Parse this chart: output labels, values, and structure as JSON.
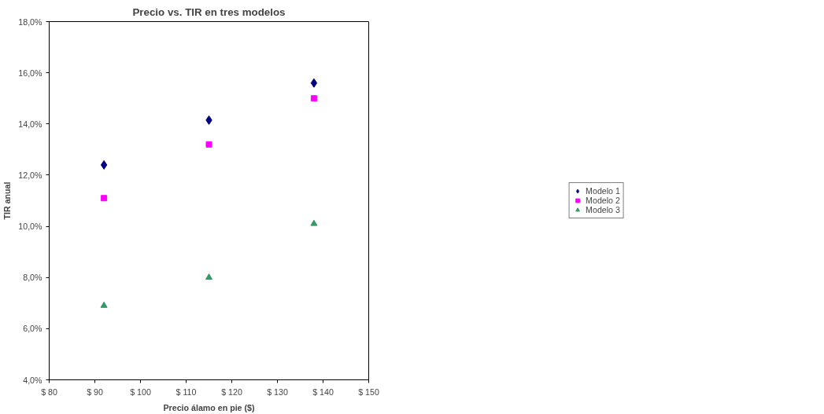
{
  "chart_data": {
    "type": "scatter",
    "title": "Precio vs. TIR en tres modelos",
    "xlabel": "Precio álamo en pie ($)",
    "ylabel": "TIR anual",
    "x": [
      92,
      115,
      138
    ],
    "series": [
      {
        "name": "Modelo 1",
        "color": "#000080",
        "marker": "diamond",
        "values": [
          12.4,
          14.15,
          15.6
        ]
      },
      {
        "name": "Modelo 2",
        "color": "#ff00ff",
        "marker": "square",
        "values": [
          11.1,
          13.2,
          15.0
        ]
      },
      {
        "name": "Modelo 3",
        "color": "#339966",
        "marker": "triangle",
        "values": [
          6.9,
          8.0,
          10.1
        ]
      }
    ],
    "xlim": [
      80,
      150
    ],
    "xticks": [
      {
        "value": 80,
        "label": "$ 80"
      },
      {
        "value": 90,
        "label": "$ 90"
      },
      {
        "value": 100,
        "label": "$ 100"
      },
      {
        "value": 110,
        "label": "$ 110"
      },
      {
        "value": 120,
        "label": "$ 120"
      },
      {
        "value": 130,
        "label": "$ 130"
      },
      {
        "value": 140,
        "label": "$ 140"
      },
      {
        "value": 150,
        "label": "$ 150"
      }
    ],
    "ylim": [
      4,
      18
    ],
    "yticks": [
      {
        "value": 4,
        "label": "4,0%"
      },
      {
        "value": 6,
        "label": "6,0%"
      },
      {
        "value": 8,
        "label": "8,0%"
      },
      {
        "value": 10,
        "label": "10,0%"
      },
      {
        "value": 12,
        "label": "12,0%"
      },
      {
        "value": 14,
        "label": "14,0%"
      },
      {
        "value": 16,
        "label": "16,0%"
      },
      {
        "value": 18,
        "label": "18,0%"
      }
    ],
    "grid": false,
    "legend": "right"
  }
}
